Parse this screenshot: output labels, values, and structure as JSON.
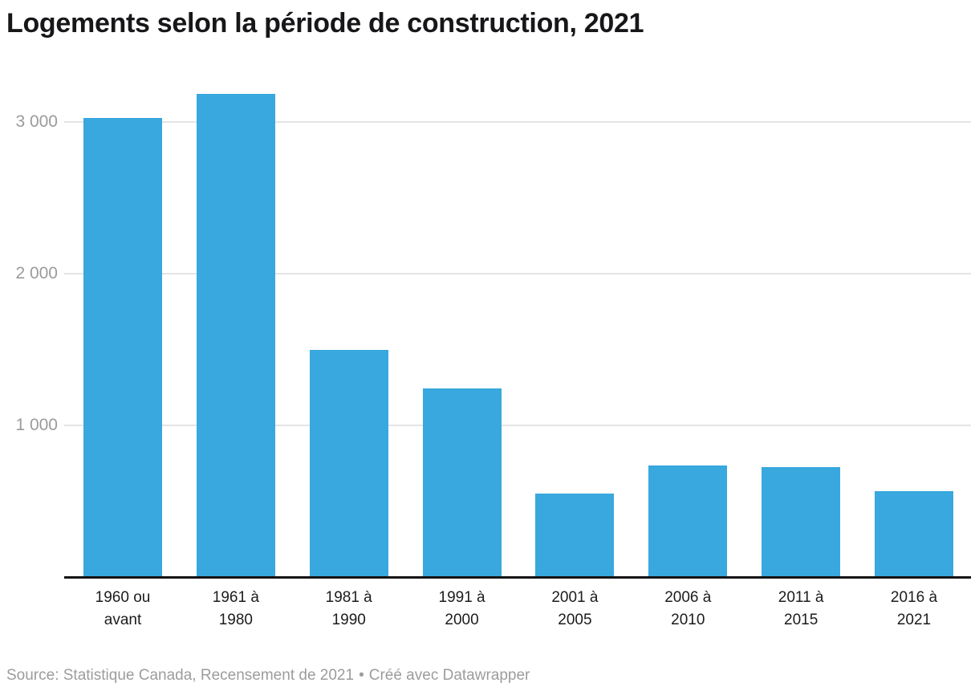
{
  "title": "Logements selon la période de construction, 2021",
  "chart_data": {
    "type": "bar",
    "title": "Logements selon la période de construction, 2021",
    "categories": [
      "1960 ou avant",
      "1961 à 1980",
      "1981 à 1990",
      "1991 à 2000",
      "2001 à 2005",
      "2006 à 2010",
      "2011 à 2015",
      "2016 à 2021"
    ],
    "category_lines": [
      [
        "1960 ou",
        "avant"
      ],
      [
        "1961 à",
        "1980"
      ],
      [
        "1981 à",
        "1990"
      ],
      [
        "1991 à",
        "2000"
      ],
      [
        "2001 à",
        "2005"
      ],
      [
        "2006 à",
        "2010"
      ],
      [
        "2011 à",
        "2015"
      ],
      [
        "2016 à",
        "2021"
      ]
    ],
    "values": [
      3025,
      3185,
      1495,
      1240,
      550,
      735,
      725,
      565
    ],
    "xlabel": "",
    "ylabel": "",
    "ylim": [
      0,
      3200
    ],
    "yticks": [
      1000,
      2000,
      3000
    ],
    "ytick_labels": [
      "1 000",
      "2 000",
      "3 000"
    ],
    "grid": true,
    "legend": "none",
    "bar_color": "#38a8de"
  },
  "colors": {
    "bar": "#38a8de",
    "title_text": "#17171a",
    "axis_line": "#141414",
    "gridline": "#e4e4e4",
    "y_tick_text": "#9b9b9b",
    "x_tick_text": "#1c1c1c",
    "footer_text": "#9c9c9c",
    "background": "#ffffff"
  },
  "footer": {
    "source": "Source: Statistique Canada, Recensement de 2021",
    "separator": "•",
    "credit": "Créé avec Datawrapper"
  }
}
